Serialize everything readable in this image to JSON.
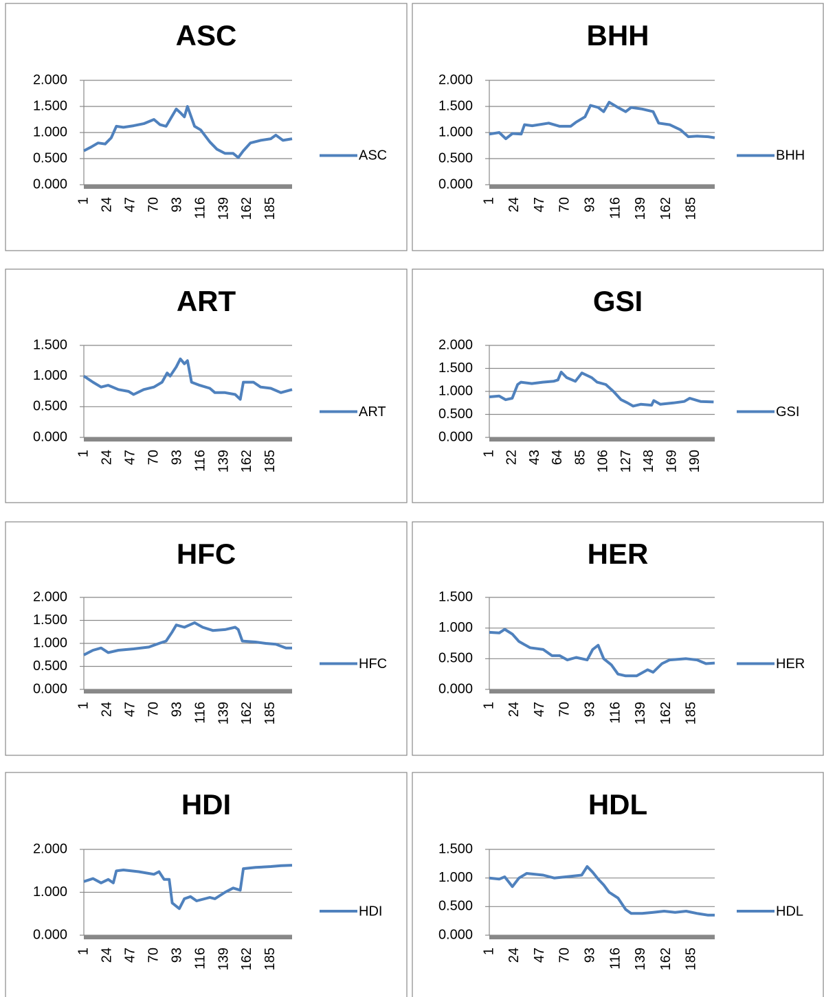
{
  "chart_data": [
    {
      "type": "line",
      "title": "ASC",
      "legend": "right",
      "grid": true,
      "x": [
        1,
        8,
        15,
        22,
        28,
        33,
        40,
        50,
        60,
        70,
        76,
        82,
        88,
        92,
        96,
        100,
        103,
        110,
        116,
        125,
        132,
        140,
        148,
        153,
        158,
        165,
        175,
        185,
        190,
        197,
        206
      ],
      "series": [
        {
          "name": "ASC",
          "color": "#4f81bd",
          "values": [
            0.65,
            0.72,
            0.8,
            0.78,
            0.9,
            1.12,
            1.1,
            1.13,
            1.17,
            1.25,
            1.15,
            1.12,
            1.32,
            1.45,
            1.38,
            1.3,
            1.5,
            1.12,
            1.05,
            0.82,
            0.68,
            0.6,
            0.6,
            0.52,
            0.65,
            0.8,
            0.85,
            0.88,
            0.95,
            0.85,
            0.88
          ]
        }
      ],
      "xlim": [
        1,
        206
      ],
      "xticks": [
        1,
        24,
        47,
        70,
        93,
        116,
        139,
        162,
        185
      ],
      "ylim": [
        0,
        2
      ],
      "yticks": [
        {
          "value": 0,
          "label": "0.000"
        },
        {
          "value": 0.5,
          "label": "0.500"
        },
        {
          "value": 1,
          "label": "1.000"
        },
        {
          "value": 1.5,
          "label": "1.500"
        },
        {
          "value": 2,
          "label": "2.000"
        }
      ]
    },
    {
      "type": "line",
      "title": "BHH",
      "legend": "right",
      "grid": true,
      "x": [
        1,
        10,
        16,
        22,
        30,
        33,
        40,
        55,
        65,
        75,
        80,
        88,
        93,
        100,
        105,
        110,
        118,
        125,
        130,
        140,
        150,
        155,
        165,
        175,
        182,
        190,
        200,
        206
      ],
      "series": [
        {
          "name": "BHH",
          "color": "#4f81bd",
          "values": [
            0.97,
            1.0,
            0.88,
            0.98,
            0.97,
            1.15,
            1.13,
            1.18,
            1.12,
            1.12,
            1.2,
            1.3,
            1.52,
            1.48,
            1.4,
            1.58,
            1.48,
            1.4,
            1.48,
            1.45,
            1.4,
            1.18,
            1.15,
            1.05,
            0.92,
            0.93,
            0.92,
            0.9
          ]
        }
      ],
      "xlim": [
        1,
        206
      ],
      "xticks": [
        1,
        24,
        47,
        70,
        93,
        116,
        139,
        162,
        185
      ],
      "ylim": [
        0,
        2
      ],
      "yticks": [
        {
          "value": 0,
          "label": "0.000"
        },
        {
          "value": 0.5,
          "label": "0.500"
        },
        {
          "value": 1,
          "label": "1.000"
        },
        {
          "value": 1.5,
          "label": "1.500"
        },
        {
          "value": 2,
          "label": "2.000"
        }
      ]
    },
    {
      "type": "line",
      "title": "ART",
      "legend": "right",
      "grid": true,
      "x": [
        1,
        10,
        18,
        25,
        35,
        45,
        50,
        60,
        70,
        78,
        83,
        86,
        92,
        96,
        100,
        103,
        107,
        115,
        125,
        130,
        140,
        150,
        155,
        158,
        168,
        175,
        185,
        195,
        206
      ],
      "series": [
        {
          "name": "ART",
          "color": "#4f81bd",
          "values": [
            1.0,
            0.9,
            0.82,
            0.85,
            0.78,
            0.75,
            0.7,
            0.78,
            0.82,
            0.9,
            1.05,
            1.0,
            1.15,
            1.28,
            1.2,
            1.25,
            0.9,
            0.85,
            0.8,
            0.73,
            0.73,
            0.7,
            0.62,
            0.9,
            0.9,
            0.82,
            0.8,
            0.73,
            0.78
          ]
        }
      ],
      "xlim": [
        1,
        206
      ],
      "xticks": [
        1,
        24,
        47,
        70,
        93,
        116,
        139,
        162,
        185
      ],
      "ylim": [
        0,
        1.5
      ],
      "yticks": [
        {
          "value": 0,
          "label": "0.000"
        },
        {
          "value": 0.5,
          "label": "0.500"
        },
        {
          "value": 1,
          "label": "1.000"
        },
        {
          "value": 1.5,
          "label": "1.500"
        }
      ]
    },
    {
      "type": "line",
      "title": "GSI",
      "legend": "right",
      "grid": true,
      "x": [
        1,
        10,
        16,
        22,
        27,
        30,
        40,
        50,
        60,
        64,
        67,
        72,
        80,
        86,
        95,
        100,
        108,
        115,
        122,
        128,
        133,
        140,
        150,
        152,
        158,
        170,
        180,
        185,
        195,
        207
      ],
      "series": [
        {
          "name": "GSI",
          "color": "#4f81bd",
          "values": [
            0.88,
            0.9,
            0.82,
            0.85,
            1.15,
            1.2,
            1.17,
            1.2,
            1.22,
            1.25,
            1.42,
            1.3,
            1.22,
            1.4,
            1.3,
            1.2,
            1.15,
            1.0,
            0.82,
            0.75,
            0.68,
            0.72,
            0.7,
            0.8,
            0.72,
            0.75,
            0.78,
            0.85,
            0.78,
            0.77
          ]
        }
      ],
      "xlim": [
        1,
        208
      ],
      "xticks": [
        1,
        22,
        43,
        64,
        85,
        106,
        127,
        148,
        169,
        190
      ],
      "ylim": [
        0,
        2
      ],
      "yticks": [
        {
          "value": 0,
          "label": "0.000"
        },
        {
          "value": 0.5,
          "label": "0.500"
        },
        {
          "value": 1,
          "label": "1.000"
        },
        {
          "value": 1.5,
          "label": "1.500"
        },
        {
          "value": 2,
          "label": "2.000"
        }
      ]
    },
    {
      "type": "line",
      "title": "HFC",
      "legend": "right",
      "grid": true,
      "x": [
        1,
        10,
        18,
        25,
        35,
        50,
        65,
        75,
        82,
        88,
        92,
        100,
        110,
        118,
        128,
        140,
        150,
        153,
        157,
        170,
        180,
        190,
        200,
        206
      ],
      "series": [
        {
          "name": "HFC",
          "color": "#4f81bd",
          "values": [
            0.75,
            0.85,
            0.9,
            0.8,
            0.85,
            0.88,
            0.92,
            1.0,
            1.05,
            1.25,
            1.4,
            1.35,
            1.45,
            1.35,
            1.28,
            1.3,
            1.35,
            1.3,
            1.05,
            1.03,
            1.0,
            0.98,
            0.9,
            0.9
          ]
        }
      ],
      "xlim": [
        1,
        206
      ],
      "xticks": [
        1,
        24,
        47,
        70,
        93,
        116,
        139,
        162,
        185
      ],
      "ylim": [
        0,
        2
      ],
      "yticks": [
        {
          "value": 0,
          "label": "0.000"
        },
        {
          "value": 0.5,
          "label": "0.500"
        },
        {
          "value": 1,
          "label": "1.000"
        },
        {
          "value": 1.5,
          "label": "1.500"
        },
        {
          "value": 2,
          "label": "2.000"
        }
      ]
    },
    {
      "type": "line",
      "title": "HER",
      "legend": "right",
      "grid": true,
      "x": [
        1,
        10,
        15,
        22,
        28,
        38,
        50,
        58,
        65,
        72,
        80,
        90,
        95,
        100,
        105,
        112,
        118,
        125,
        135,
        145,
        150,
        158,
        165,
        180,
        190,
        198,
        206
      ],
      "series": [
        {
          "name": "HER",
          "color": "#4f81bd",
          "values": [
            0.93,
            0.92,
            0.98,
            0.9,
            0.78,
            0.68,
            0.65,
            0.55,
            0.55,
            0.48,
            0.52,
            0.48,
            0.65,
            0.72,
            0.5,
            0.4,
            0.25,
            0.22,
            0.22,
            0.32,
            0.28,
            0.42,
            0.48,
            0.5,
            0.48,
            0.42,
            0.43
          ]
        }
      ],
      "xlim": [
        1,
        206
      ],
      "xticks": [
        1,
        24,
        47,
        70,
        93,
        116,
        139,
        162,
        185
      ],
      "ylim": [
        0,
        1.5
      ],
      "yticks": [
        {
          "value": 0,
          "label": "0.000"
        },
        {
          "value": 0.5,
          "label": "0.500"
        },
        {
          "value": 1,
          "label": "1.000"
        },
        {
          "value": 1.5,
          "label": "1.500"
        }
      ]
    },
    {
      "type": "line",
      "title": "HDI",
      "legend": "right",
      "grid": true,
      "x": [
        1,
        10,
        18,
        25,
        30,
        33,
        40,
        55,
        70,
        75,
        80,
        85,
        88,
        95,
        100,
        106,
        112,
        125,
        130,
        140,
        148,
        155,
        158,
        170,
        185,
        195,
        206
      ],
      "series": [
        {
          "name": "HDI",
          "color": "#4f81bd",
          "values": [
            1.25,
            1.32,
            1.22,
            1.3,
            1.22,
            1.5,
            1.52,
            1.48,
            1.42,
            1.48,
            1.3,
            1.3,
            0.75,
            0.62,
            0.85,
            0.9,
            0.8,
            0.88,
            0.85,
            1.0,
            1.1,
            1.05,
            1.55,
            1.58,
            1.6,
            1.62,
            1.63
          ]
        }
      ],
      "xlim": [
        1,
        206
      ],
      "xticks": [
        1,
        24,
        47,
        70,
        93,
        116,
        139,
        162,
        185
      ],
      "ylim": [
        0,
        2
      ],
      "yticks": [
        {
          "value": 0,
          "label": "0.000"
        },
        {
          "value": 1,
          "label": "1.000"
        },
        {
          "value": 2,
          "label": "2.000"
        }
      ]
    },
    {
      "type": "line",
      "title": "HDL",
      "legend": "right",
      "grid": true,
      "x": [
        1,
        10,
        15,
        22,
        28,
        35,
        50,
        60,
        75,
        85,
        90,
        95,
        100,
        105,
        110,
        118,
        125,
        130,
        140,
        150,
        160,
        170,
        180,
        190,
        200,
        206
      ],
      "series": [
        {
          "name": "HDL",
          "color": "#4f81bd",
          "values": [
            1.0,
            0.98,
            1.02,
            0.85,
            1.0,
            1.08,
            1.05,
            1.0,
            1.03,
            1.05,
            1.2,
            1.1,
            0.98,
            0.88,
            0.75,
            0.65,
            0.45,
            0.38,
            0.38,
            0.4,
            0.42,
            0.4,
            0.42,
            0.38,
            0.35,
            0.35
          ]
        }
      ],
      "xlim": [
        1,
        206
      ],
      "xticks": [
        1,
        24,
        47,
        70,
        93,
        116,
        139,
        162,
        185
      ],
      "ylim": [
        0,
        1.5
      ],
      "yticks": [
        {
          "value": 0,
          "label": "0.000"
        },
        {
          "value": 0.5,
          "label": "0.500"
        },
        {
          "value": 1,
          "label": "1.000"
        },
        {
          "value": 1.5,
          "label": "1.500"
        }
      ]
    }
  ]
}
